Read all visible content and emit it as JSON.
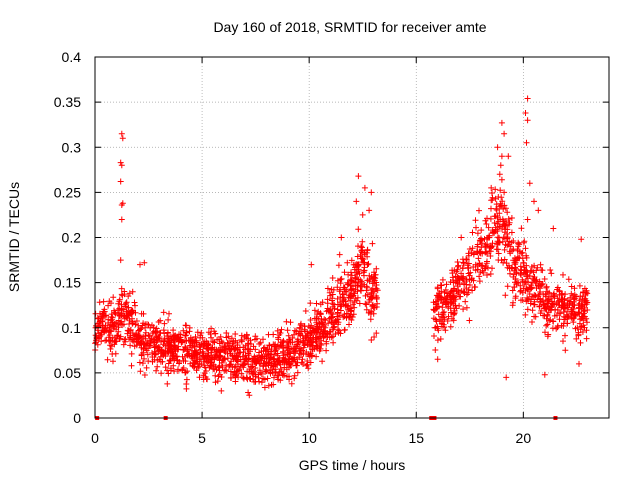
{
  "chart_data": {
    "type": "scatter",
    "title": "Day 160 of 2018, SRMTID for receiver amte",
    "xlabel": "GPS time / hours",
    "ylabel": "SRMTID / TECUs",
    "xlim": [
      0,
      24
    ],
    "ylim": [
      0,
      0.4
    ],
    "xticks": [
      0,
      5,
      10,
      15,
      20
    ],
    "yticks": [
      0,
      0.05,
      0.1,
      0.15,
      0.2,
      0.25,
      0.3,
      0.35,
      0.4
    ],
    "xtick_labels": [
      "0",
      "5",
      "10",
      "15",
      "20"
    ],
    "ytick_labels": [
      "0",
      "0.05",
      "0.1",
      "0.15",
      "0.2",
      "0.25",
      "0.3",
      "0.35",
      "0.4"
    ],
    "grid": true,
    "marker": "plus",
    "color": "#ff0000",
    "seed": 160,
    "trend": [
      {
        "x": 0.0,
        "y": 0.095,
        "spread": 0.03
      },
      {
        "x": 0.5,
        "y": 0.105,
        "spread": 0.035
      },
      {
        "x": 1.0,
        "y": 0.095,
        "spread": 0.03
      },
      {
        "x": 1.5,
        "y": 0.12,
        "spread": 0.04
      },
      {
        "x": 2.0,
        "y": 0.09,
        "spread": 0.03
      },
      {
        "x": 2.5,
        "y": 0.085,
        "spread": 0.03
      },
      {
        "x": 3.0,
        "y": 0.08,
        "spread": 0.03
      },
      {
        "x": 4.0,
        "y": 0.075,
        "spread": 0.03
      },
      {
        "x": 5.0,
        "y": 0.07,
        "spread": 0.028
      },
      {
        "x": 6.0,
        "y": 0.068,
        "spread": 0.028
      },
      {
        "x": 7.0,
        "y": 0.065,
        "spread": 0.028
      },
      {
        "x": 8.0,
        "y": 0.062,
        "spread": 0.028
      },
      {
        "x": 9.0,
        "y": 0.072,
        "spread": 0.03
      },
      {
        "x": 10.0,
        "y": 0.085,
        "spread": 0.03
      },
      {
        "x": 11.0,
        "y": 0.11,
        "spread": 0.035
      },
      {
        "x": 12.0,
        "y": 0.14,
        "spread": 0.04
      },
      {
        "x": 12.5,
        "y": 0.17,
        "spread": 0.045
      },
      {
        "x": 13.2,
        "y": 0.13,
        "spread": 0.045
      },
      {
        "x": 15.8,
        "y": 0.11,
        "spread": 0.035
      },
      {
        "x": 16.5,
        "y": 0.13,
        "spread": 0.035
      },
      {
        "x": 17.5,
        "y": 0.16,
        "spread": 0.04
      },
      {
        "x": 18.5,
        "y": 0.2,
        "spread": 0.045
      },
      {
        "x": 19.0,
        "y": 0.22,
        "spread": 0.05
      },
      {
        "x": 19.5,
        "y": 0.17,
        "spread": 0.045
      },
      {
        "x": 20.0,
        "y": 0.16,
        "spread": 0.04
      },
      {
        "x": 20.5,
        "y": 0.14,
        "spread": 0.04
      },
      {
        "x": 21.0,
        "y": 0.13,
        "spread": 0.035
      },
      {
        "x": 22.0,
        "y": 0.12,
        "spread": 0.035
      },
      {
        "x": 23.0,
        "y": 0.12,
        "spread": 0.035
      }
    ],
    "segments": [
      {
        "x_start": 0.0,
        "x_end": 13.2,
        "count": 1500
      },
      {
        "x_start": 15.8,
        "x_end": 23.0,
        "count": 750
      }
    ],
    "highlight_points": [
      {
        "x": 1.25,
        "y": 0.315
      },
      {
        "x": 1.3,
        "y": 0.31
      },
      {
        "x": 1.2,
        "y": 0.283
      },
      {
        "x": 1.25,
        "y": 0.28
      },
      {
        "x": 1.2,
        "y": 0.262
      },
      {
        "x": 1.25,
        "y": 0.236
      },
      {
        "x": 1.3,
        "y": 0.238
      },
      {
        "x": 1.25,
        "y": 0.22
      },
      {
        "x": 1.2,
        "y": 0.175
      },
      {
        "x": 2.3,
        "y": 0.172
      },
      {
        "x": 2.1,
        "y": 0.17
      },
      {
        "x": 12.3,
        "y": 0.268
      },
      {
        "x": 12.6,
        "y": 0.255
      },
      {
        "x": 12.9,
        "y": 0.25
      },
      {
        "x": 12.2,
        "y": 0.24
      },
      {
        "x": 12.8,
        "y": 0.23
      },
      {
        "x": 12.5,
        "y": 0.225
      },
      {
        "x": 10.1,
        "y": 0.17
      },
      {
        "x": 11.5,
        "y": 0.2
      },
      {
        "x": 20.2,
        "y": 0.354
      },
      {
        "x": 20.1,
        "y": 0.338
      },
      {
        "x": 20.2,
        "y": 0.33
      },
      {
        "x": 20.15,
        "y": 0.305
      },
      {
        "x": 19.0,
        "y": 0.327
      },
      {
        "x": 19.1,
        "y": 0.315
      },
      {
        "x": 18.8,
        "y": 0.3
      },
      {
        "x": 19.0,
        "y": 0.29
      },
      {
        "x": 18.95,
        "y": 0.28
      },
      {
        "x": 19.3,
        "y": 0.29
      },
      {
        "x": 18.9,
        "y": 0.27
      },
      {
        "x": 20.3,
        "y": 0.26
      },
      {
        "x": 18.5,
        "y": 0.255
      },
      {
        "x": 19.1,
        "y": 0.25
      },
      {
        "x": 20.2,
        "y": 0.22
      },
      {
        "x": 20.5,
        "y": 0.24
      },
      {
        "x": 20.7,
        "y": 0.23
      },
      {
        "x": 19.2,
        "y": 0.045
      },
      {
        "x": 21.0,
        "y": 0.048
      },
      {
        "x": 16.0,
        "y": 0.065
      },
      {
        "x": 22.6,
        "y": 0.06
      },
      {
        "x": 22.7,
        "y": 0.198
      },
      {
        "x": 21.4,
        "y": 0.21
      },
      {
        "x": 17.1,
        "y": 0.2
      }
    ],
    "zero_markers": [
      {
        "x": 0.1,
        "y": 0.0
      },
      {
        "x": 3.3,
        "y": 0.0
      },
      {
        "x": 15.7,
        "y": 0.0
      },
      {
        "x": 15.85,
        "y": 0.0
      },
      {
        "x": 21.5,
        "y": 0.0
      }
    ]
  }
}
